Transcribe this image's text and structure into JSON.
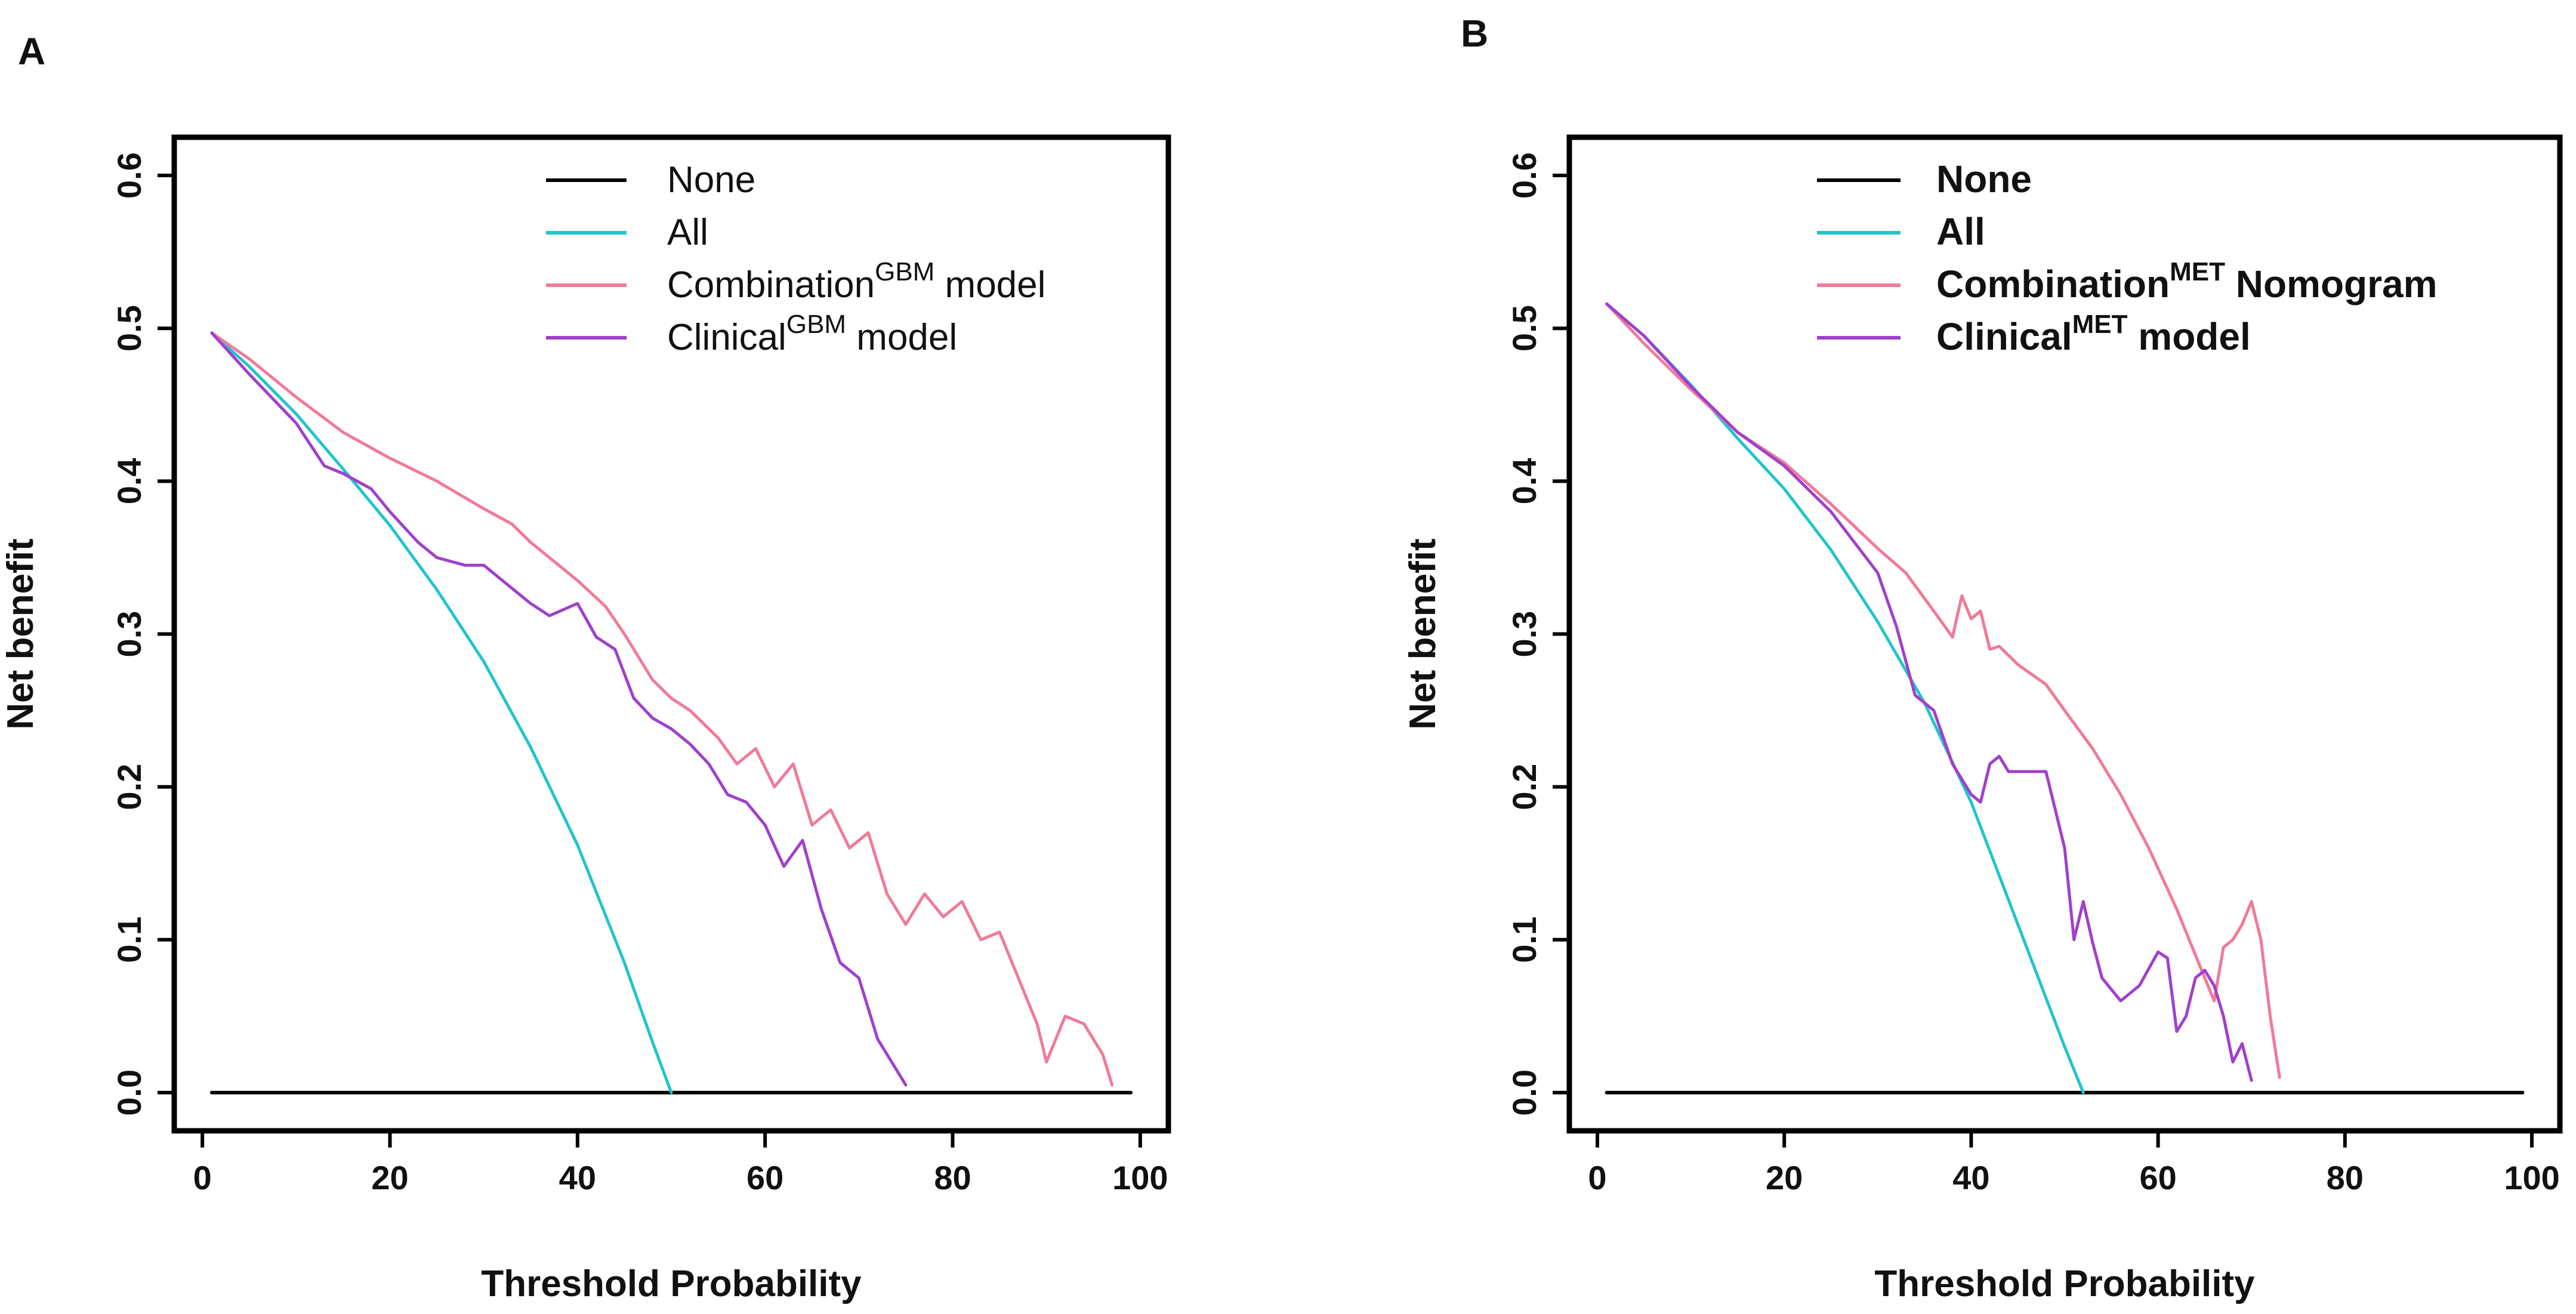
{
  "chart_data": [
    {
      "panel": "A",
      "type": "line",
      "title": "",
      "xlabel": "Threshold Probability",
      "ylabel": "Net benefit",
      "xlim": [
        -3,
        103
      ],
      "ylim": [
        -0.025,
        0.625
      ],
      "xticks": [
        "0",
        "20",
        "40",
        "60",
        "80",
        "100"
      ],
      "xtick_values": [
        0,
        20,
        40,
        60,
        80,
        100
      ],
      "yticks": [
        "0.0",
        "0.1",
        "0.2",
        "0.3",
        "0.4",
        "0.5",
        "0.6"
      ],
      "ytick_values": [
        0,
        0.1,
        0.2,
        0.3,
        0.4,
        0.5,
        0.6
      ],
      "legend": {
        "position": "top",
        "entries": [
          {
            "base": "None",
            "sup": "",
            "tail": ""
          },
          {
            "base": "All",
            "sup": "",
            "tail": ""
          },
          {
            "base": "Combination",
            "sup": "GBM",
            "tail": " model"
          },
          {
            "base": "Clinical",
            "sup": "GBM",
            "tail": " model"
          }
        ]
      },
      "series": [
        {
          "name": "None",
          "color": "#000000",
          "x": [
            1,
            99
          ],
          "y": [
            0,
            0
          ]
        },
        {
          "name": "All",
          "color": "#22c4cc",
          "x": [
            1,
            5,
            10,
            15,
            20,
            25,
            30,
            35,
            40,
            45,
            48,
            50
          ],
          "y": [
            0.497,
            0.475,
            0.444,
            0.408,
            0.371,
            0.329,
            0.282,
            0.226,
            0.162,
            0.085,
            0.033,
            0
          ]
        },
        {
          "name": "Combination GBM model",
          "color": "#f07a98",
          "x": [
            1,
            5,
            10,
            15,
            20,
            25,
            30,
            33,
            35,
            38,
            40,
            43,
            45,
            48,
            50,
            52,
            55,
            57,
            59,
            61,
            63,
            65,
            67,
            69,
            71,
            73,
            75,
            77,
            79,
            81,
            83,
            85,
            87,
            89,
            90,
            92,
            94,
            96,
            97
          ],
          "y": [
            0.497,
            0.48,
            0.455,
            0.432,
            0.415,
            0.4,
            0.382,
            0.372,
            0.36,
            0.345,
            0.335,
            0.318,
            0.3,
            0.27,
            0.258,
            0.25,
            0.232,
            0.215,
            0.225,
            0.2,
            0.215,
            0.175,
            0.185,
            0.16,
            0.17,
            0.13,
            0.11,
            0.13,
            0.115,
            0.125,
            0.1,
            0.105,
            0.075,
            0.045,
            0.02,
            0.05,
            0.045,
            0.025,
            0.005
          ]
        },
        {
          "name": "Clinical GBM model",
          "color": "#a040cc",
          "x": [
            1,
            5,
            10,
            13,
            15,
            18,
            20,
            23,
            25,
            28,
            30,
            33,
            35,
            37,
            40,
            42,
            44,
            46,
            48,
            50,
            52,
            54,
            56,
            58,
            60,
            62,
            64,
            66,
            68,
            70,
            72,
            74,
            75
          ],
          "y": [
            0.497,
            0.47,
            0.438,
            0.41,
            0.405,
            0.395,
            0.38,
            0.36,
            0.35,
            0.345,
            0.345,
            0.33,
            0.32,
            0.312,
            0.32,
            0.298,
            0.29,
            0.258,
            0.245,
            0.238,
            0.228,
            0.215,
            0.195,
            0.19,
            0.175,
            0.148,
            0.165,
            0.12,
            0.085,
            0.075,
            0.035,
            0.015,
            0.005
          ]
        }
      ]
    },
    {
      "panel": "B",
      "type": "line",
      "title": "",
      "xlabel": "Threshold Probability",
      "ylabel": "Net benefit",
      "xlim": [
        -3,
        103
      ],
      "ylim": [
        -0.025,
        0.625
      ],
      "xticks": [
        "0",
        "20",
        "40",
        "60",
        "80",
        "100"
      ],
      "xtick_values": [
        0,
        20,
        40,
        60,
        80,
        100
      ],
      "yticks": [
        "0.0",
        "0.1",
        "0.2",
        "0.3",
        "0.4",
        "0.5",
        "0.6"
      ],
      "ytick_values": [
        0,
        0.1,
        0.2,
        0.3,
        0.4,
        0.5,
        0.6
      ],
      "legend": {
        "position": "top",
        "entries": [
          {
            "base": "None",
            "sup": "",
            "tail": ""
          },
          {
            "base": "All",
            "sup": "",
            "tail": ""
          },
          {
            "base": "Combination",
            "sup": "MET",
            "tail": " Nomogram"
          },
          {
            "base": "Clinical",
            "sup": "MET",
            "tail": " model"
          }
        ]
      },
      "series": [
        {
          "name": "None",
          "color": "#000000",
          "x": [
            1,
            99
          ],
          "y": [
            0,
            0
          ]
        },
        {
          "name": "All",
          "color": "#22c4cc",
          "x": [
            1,
            5,
            10,
            15,
            20,
            25,
            30,
            35,
            40,
            45,
            50,
            52
          ],
          "y": [
            0.516,
            0.495,
            0.463,
            0.428,
            0.395,
            0.355,
            0.308,
            0.255,
            0.19,
            0.11,
            0.03,
            0
          ]
        },
        {
          "name": "Combination MET Nomogram",
          "color": "#f07a98",
          "x": [
            1,
            5,
            10,
            15,
            20,
            25,
            30,
            33,
            36,
            38,
            39,
            40,
            41,
            42,
            43,
            45,
            48,
            50,
            53,
            56,
            59,
            62,
            64,
            66,
            67,
            68,
            69,
            70,
            71,
            72,
            73
          ],
          "y": [
            0.516,
            0.49,
            0.46,
            0.432,
            0.412,
            0.385,
            0.356,
            0.34,
            0.315,
            0.298,
            0.325,
            0.31,
            0.315,
            0.29,
            0.292,
            0.28,
            0.267,
            0.25,
            0.225,
            0.195,
            0.16,
            0.12,
            0.09,
            0.06,
            0.095,
            0.1,
            0.11,
            0.125,
            0.1,
            0.05,
            0.01
          ]
        },
        {
          "name": "Clinical MET model",
          "color": "#a040cc",
          "x": [
            1,
            5,
            10,
            15,
            20,
            25,
            30,
            32,
            34,
            36,
            38,
            40,
            41,
            42,
            43,
            44,
            46,
            48,
            50,
            51,
            52,
            53,
            54,
            56,
            57,
            58,
            60,
            61,
            62,
            63,
            64,
            65,
            66,
            67,
            68,
            69,
            70
          ],
          "y": [
            0.516,
            0.495,
            0.462,
            0.432,
            0.41,
            0.38,
            0.34,
            0.305,
            0.26,
            0.25,
            0.215,
            0.195,
            0.19,
            0.215,
            0.22,
            0.21,
            0.21,
            0.21,
            0.16,
            0.1,
            0.125,
            0.098,
            0.075,
            0.06,
            0.065,
            0.07,
            0.092,
            0.088,
            0.04,
            0.05,
            0.075,
            0.08,
            0.07,
            0.05,
            0.02,
            0.032,
            0.008
          ]
        }
      ]
    }
  ]
}
